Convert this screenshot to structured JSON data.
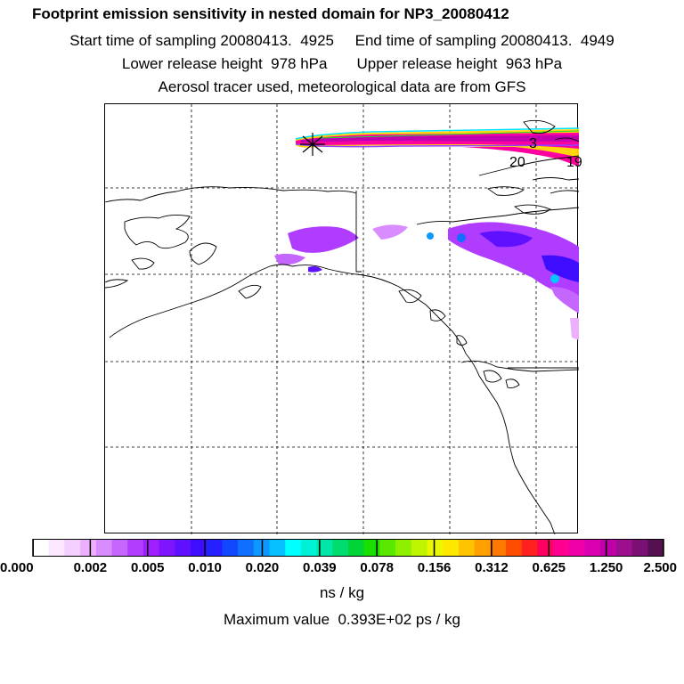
{
  "header": {
    "title": "Footprint emission sensitivity in nested domain for NP3_20080412",
    "line2": "Start time of sampling 20080413.  4925     End time of sampling 20080413.  4949",
    "line3": "Lower release height  978 hPa       Upper release height  963 hPa",
    "line4": "Aerosol tracer used, meteorological data are from GFS"
  },
  "map": {
    "labels": [
      {
        "text": "3"
      },
      {
        "text": "20"
      },
      {
        "text": "19"
      }
    ],
    "release_marker": "asterisk-star-icon",
    "grid": "dashed"
  },
  "colorbar": {
    "colors": [
      "#ffffff",
      "#fbe7ff",
      "#f4cfff",
      "#ecb0ff",
      "#d88cff",
      "#c566ff",
      "#b13dff",
      "#9f1fff",
      "#7d16ff",
      "#5e10ff",
      "#3e0dff",
      "#2420ff",
      "#1047ff",
      "#0f70ff",
      "#0b98ff",
      "#07c0ff",
      "#00ffff",
      "#00f0d6",
      "#00e5a8",
      "#00dc6e",
      "#00d437",
      "#19e000",
      "#5be800",
      "#8ef000",
      "#bff500",
      "#e9f700",
      "#ffe800",
      "#ffc400",
      "#ffa000",
      "#ff7800",
      "#ff4d00",
      "#ff2020",
      "#ff0060",
      "#ff0090",
      "#f000a8",
      "#d800b0",
      "#c000a8",
      "#9c1090",
      "#7a1074",
      "#551050"
    ],
    "ticks": [
      "0.000",
      "0.002",
      "0.005",
      "0.010",
      "0.020",
      "0.039",
      "0.078",
      "0.156",
      "0.312",
      "0.625",
      "1.250",
      "2.500"
    ],
    "units": "ns / kg"
  },
  "footer": {
    "maximum": "Maximum value  0.393E+02 ps / kg"
  }
}
